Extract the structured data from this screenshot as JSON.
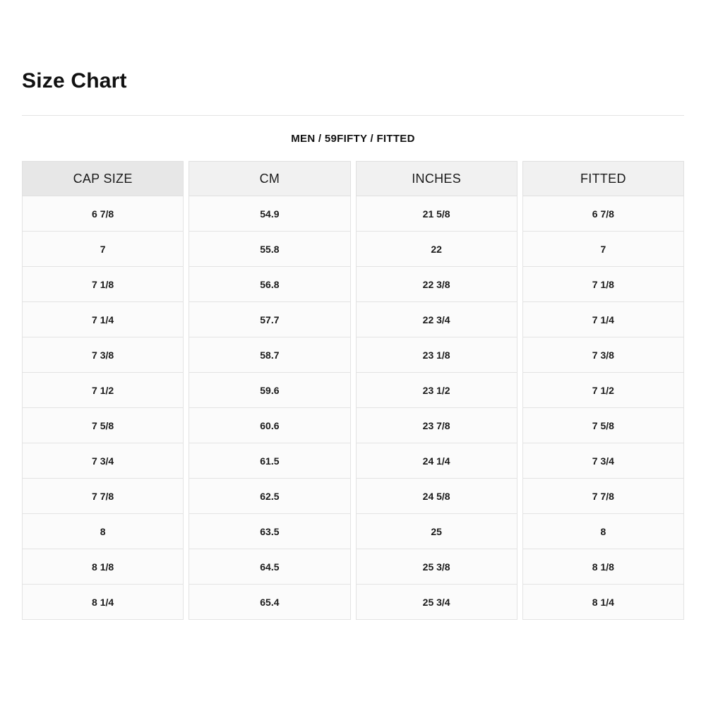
{
  "page": {
    "title": "Size Chart",
    "subtitle": "MEN / 59FIFTY / FITTED"
  },
  "colors": {
    "header_primary_bg": "#e7e7e7",
    "header_secondary_bg": "#f1f1f1",
    "cell_bg": "#fbfbfb",
    "border": "#e3e3e3",
    "text": "#1a1a1a",
    "page_bg": "#ffffff"
  },
  "table": {
    "columns": [
      "CAP SIZE",
      "CM",
      "INCHES",
      "FITTED"
    ],
    "rows": [
      [
        "6 7/8",
        "54.9",
        "21 5/8",
        "6 7/8"
      ],
      [
        "7",
        "55.8",
        "22",
        "7"
      ],
      [
        "7 1/8",
        "56.8",
        "22 3/8",
        "7 1/8"
      ],
      [
        "7 1/4",
        "57.7",
        "22 3/4",
        "7 1/4"
      ],
      [
        "7 3/8",
        "58.7",
        "23 1/8",
        "7 3/8"
      ],
      [
        "7 1/2",
        "59.6",
        "23 1/2",
        "7 1/2"
      ],
      [
        "7 5/8",
        "60.6",
        "23 7/8",
        "7 5/8"
      ],
      [
        "7 3/4",
        "61.5",
        "24 1/4",
        "7 3/4"
      ],
      [
        "7 7/8",
        "62.5",
        "24 5/8",
        "7 7/8"
      ],
      [
        "8",
        "63.5",
        "25",
        "8"
      ],
      [
        "8 1/8",
        "64.5",
        "25 3/8",
        "8 1/8"
      ],
      [
        "8 1/4",
        "65.4",
        "25 3/4",
        "8 1/4"
      ]
    ]
  }
}
